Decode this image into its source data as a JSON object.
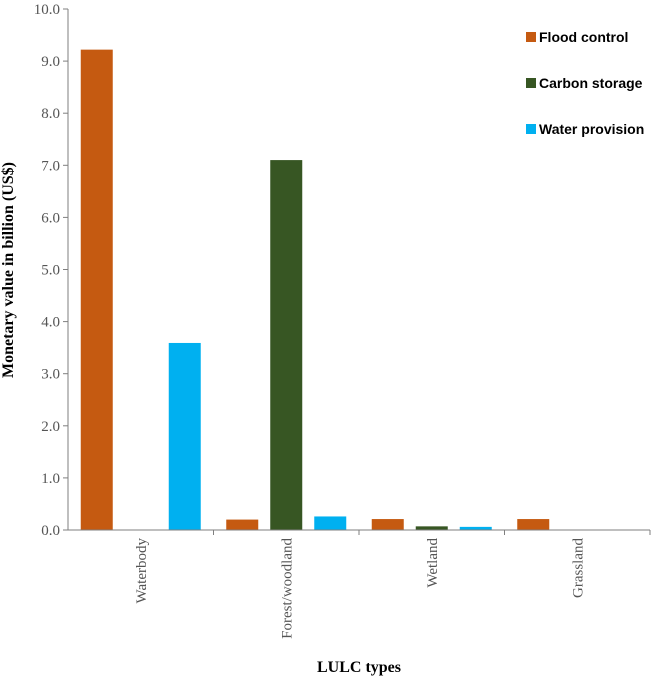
{
  "chart_data": {
    "type": "bar",
    "title": "",
    "xlabel": "LULC types",
    "ylabel": "Monetary value in billion (US$)",
    "ylim": [
      0,
      10
    ],
    "yticks": [
      "0.0",
      "1.0",
      "2.0",
      "3.0",
      "4.0",
      "5.0",
      "6.0",
      "7.0",
      "8.0",
      "9.0",
      "10.0"
    ],
    "categories": [
      "Waterbody",
      "Forest/woodland",
      "Wetland",
      "Grassland"
    ],
    "series": [
      {
        "name": "Flood control",
        "color": "#c55a11",
        "values": [
          9.22,
          0.2,
          0.21,
          0.21
        ]
      },
      {
        "name": "Carbon storage",
        "color": "#375623",
        "values": [
          0,
          7.1,
          0.07,
          0
        ]
      },
      {
        "name": "Water provision",
        "color": "#00b0f0",
        "values": [
          3.59,
          0.26,
          0.06,
          0
        ]
      }
    ],
    "legend_position": "top-right",
    "grid": false
  }
}
